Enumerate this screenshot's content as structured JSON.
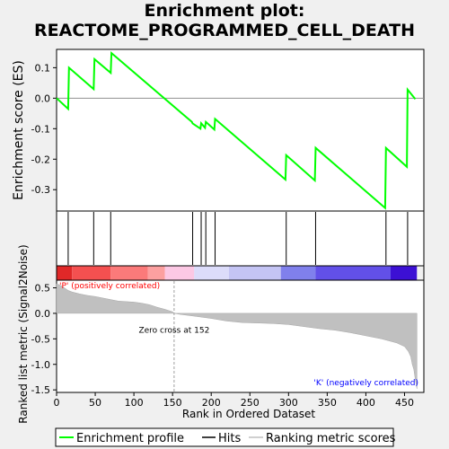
{
  "title_line1": "Enrichment plot:",
  "title_line2": "REACTOME_PROGRAMMED_CELL_DEATH",
  "colors": {
    "enrichment_line": "#00ff00",
    "hit_line": "#000000",
    "metric_fill": "#c0c0c0",
    "positive_text": "#ff0000",
    "negative_text": "#0000ff",
    "zero_cross_line": "#a0a0a0"
  },
  "chart_data": [
    {
      "type": "line",
      "name": "enrichment-profile",
      "ylabel": "Enrichment score (ES)",
      "ylim": [
        -0.37,
        0.16
      ],
      "yticks": [
        0.1,
        0.0,
        -0.1,
        -0.2,
        -0.3
      ],
      "ytick_labels": [
        "0.1",
        "0.0",
        "-0.1",
        "-0.2",
        "-0.3"
      ],
      "xlim": [
        0,
        475
      ],
      "grid": false,
      "x": [
        0,
        15,
        16,
        48,
        49,
        70,
        71,
        175,
        176,
        186,
        187,
        192,
        193,
        204,
        205,
        296,
        297,
        334,
        335,
        425,
        426,
        453,
        454,
        464
      ],
      "y": [
        0.0,
        -0.035,
        0.1,
        0.03,
        0.128,
        0.083,
        0.148,
        -0.078,
        -0.083,
        -0.1,
        -0.082,
        -0.097,
        -0.078,
        -0.103,
        -0.068,
        -0.267,
        -0.187,
        -0.27,
        -0.163,
        -0.36,
        -0.163,
        -0.225,
        0.028,
        -0.003
      ]
    },
    {
      "type": "hits",
      "name": "hits",
      "xlim": [
        0,
        475
      ],
      "x": [
        15,
        48,
        70,
        176,
        187,
        193,
        205,
        297,
        335,
        426,
        454
      ]
    },
    {
      "type": "heatmap",
      "name": "rank-color-bar",
      "xlim": [
        0,
        475
      ],
      "segments": [
        {
          "from": 0,
          "to": 20,
          "color": "#e02828"
        },
        {
          "from": 20,
          "to": 70,
          "color": "#f45050"
        },
        {
          "from": 70,
          "to": 118,
          "color": "#fb7a7a"
        },
        {
          "from": 118,
          "to": 140,
          "color": "#fca0a0"
        },
        {
          "from": 140,
          "to": 178,
          "color": "#fcc8e4"
        },
        {
          "from": 178,
          "to": 223,
          "color": "#dcdcfa"
        },
        {
          "from": 223,
          "to": 290,
          "color": "#c4c4f4"
        },
        {
          "from": 290,
          "to": 335,
          "color": "#8080ec"
        },
        {
          "from": 335,
          "to": 432,
          "color": "#6250e8"
        },
        {
          "from": 432,
          "to": 466,
          "color": "#3c10d4"
        }
      ]
    },
    {
      "type": "area",
      "name": "ranked-metric",
      "ylabel": "Ranked list metric (Signal2Noise)",
      "xlabel": "Rank in Ordered Dataset",
      "ylim": [
        -1.55,
        0.65
      ],
      "yticks": [
        0.5,
        0.0,
        -0.5,
        -1.0,
        -1.5
      ],
      "ytick_labels": [
        "0.5",
        "0.0",
        "-0.5",
        "-1.0",
        "-1.5"
      ],
      "xlim": [
        0,
        475
      ],
      "xticks": [
        0,
        50,
        100,
        150,
        200,
        250,
        300,
        350,
        400,
        450
      ],
      "xtick_labels": [
        "0",
        "50",
        "100",
        "150",
        "200",
        "250",
        "300",
        "350",
        "400",
        "450"
      ],
      "x": [
        0,
        5,
        10,
        15,
        20,
        30,
        40,
        50,
        60,
        70,
        80,
        100,
        110,
        120,
        130,
        140,
        150,
        152,
        160,
        180,
        200,
        220,
        240,
        260,
        280,
        300,
        320,
        340,
        360,
        380,
        400,
        420,
        440,
        450,
        455,
        458,
        460,
        462,
        464,
        466
      ],
      "y": [
        0.58,
        0.55,
        0.5,
        0.45,
        0.42,
        0.38,
        0.35,
        0.33,
        0.3,
        0.27,
        0.24,
        0.22,
        0.2,
        0.17,
        0.12,
        0.08,
        0.03,
        0.0,
        -0.02,
        -0.06,
        -0.1,
        -0.15,
        -0.18,
        -0.19,
        -0.2,
        -0.22,
        -0.26,
        -0.3,
        -0.33,
        -0.38,
        -0.44,
        -0.5,
        -0.58,
        -0.65,
        -0.75,
        -0.85,
        -1.0,
        -1.1,
        -1.3,
        -1.48
      ],
      "zero_cross_label": "Zero cross at 152",
      "zero_cross_x": 152,
      "positive_label": "'P' (positively correlated)",
      "negative_label": "'K' (negatively correlated)"
    }
  ],
  "legend": {
    "items": [
      {
        "label": "Enrichment profile",
        "color": "#00ff00"
      },
      {
        "label": "Hits",
        "color": "#000000"
      },
      {
        "label": "Ranking metric scores",
        "color": "#c0c0c0"
      }
    ]
  }
}
